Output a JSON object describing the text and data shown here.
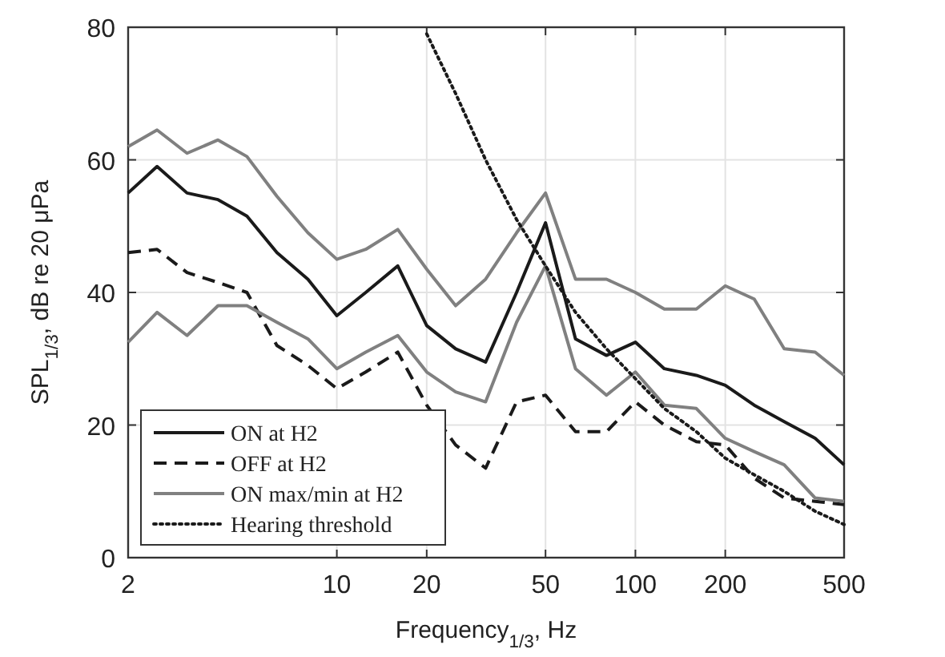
{
  "chart_data": {
    "type": "line",
    "xlabel": "Frequency$_{1/3}$, Hz",
    "ylabel": "SPL$_{1/3}$, dB re 20 μPa",
    "log": "x",
    "x": [
      2,
      2.5,
      3.15,
      4,
      5,
      6.3,
      8,
      10,
      12.5,
      16,
      20,
      25,
      31.5,
      40,
      50,
      63,
      80,
      100,
      125,
      160,
      200,
      250,
      315,
      400,
      500
    ],
    "xlim": [
      2,
      500
    ],
    "xticks": [
      2,
      10,
      20,
      50,
      100,
      200,
      500
    ],
    "ylim": [
      0,
      80
    ],
    "yticks": [
      0,
      20,
      40,
      60,
      80
    ],
    "grid": true,
    "legend": "bottom left",
    "series": [
      {
        "name": "ON at H2",
        "color": "#1a1a1a",
        "line_style": "solid",
        "values": [
          55,
          59,
          55,
          54,
          51.5,
          46,
          42,
          36.5,
          40,
          44,
          35,
          31.5,
          29.5,
          40,
          50.5,
          33,
          30.5,
          32.5,
          28.5,
          27.5,
          26,
          23,
          20.5,
          18,
          14
        ]
      },
      {
        "name": "OFF at H2",
        "color": "#1a1a1a",
        "line_style": "dashed",
        "values": [
          46,
          46.5,
          43,
          41.5,
          40,
          32,
          29,
          25.5,
          28,
          31,
          23,
          17,
          13.5,
          23.5,
          24.5,
          19,
          19,
          23.5,
          20,
          17.5,
          17,
          12,
          9,
          8.5,
          8
        ]
      },
      {
        "name": "ON max/min at H2",
        "color": "#808080",
        "line_style": "solid",
        "values": [
          62,
          64.5,
          61,
          63,
          60.5,
          54.5,
          49,
          45,
          46.5,
          49.5,
          43.5,
          38,
          42,
          49,
          55,
          42,
          42,
          40,
          37.5,
          37.5,
          41,
          39,
          31.5,
          31,
          27.5
        ]
      },
      {
        "color": "#808080",
        "line_style": "solid",
        "values": [
          32.5,
          37,
          33.5,
          38,
          38,
          35.5,
          33,
          28.5,
          31,
          33.5,
          28,
          25,
          23.5,
          35.5,
          44,
          28.5,
          24.5,
          28,
          23,
          22.5,
          18,
          16,
          14,
          9,
          8.5
        ]
      },
      {
        "name": "Hearing threshold",
        "color": "#1a1a1a",
        "line_style": "dotted",
        "x": [
          20,
          25,
          31.5,
          40,
          50,
          63,
          80,
          100,
          125,
          160,
          200,
          250,
          315,
          400,
          500
        ],
        "values": [
          79,
          70,
          60,
          51,
          44,
          37,
          31.5,
          27,
          22.5,
          19,
          15,
          12.5,
          10,
          7,
          5
        ]
      }
    ]
  }
}
